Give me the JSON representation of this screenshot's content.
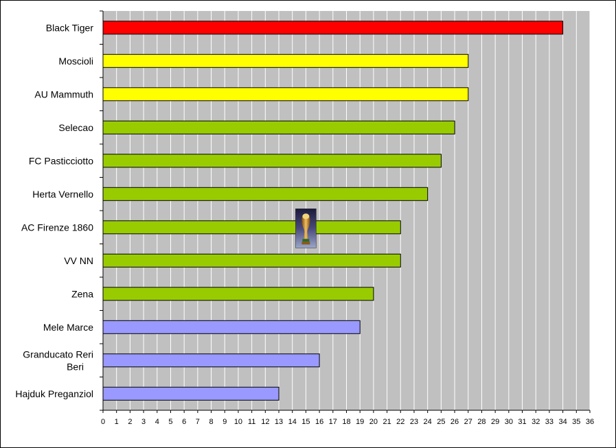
{
  "chart_data": {
    "type": "bar",
    "orientation": "horizontal",
    "title": "",
    "xlabel": "",
    "ylabel": "",
    "categories": [
      "Black Tiger",
      "Moscioli",
      "AU Mammuth",
      "Selecao",
      "FC Pasticciotto",
      "Herta Vernello",
      "AC Firenze 1860",
      "VV NN",
      "Zena",
      "Mele Marce",
      "Granducato Reri Beri",
      "Hajduk Preganziol"
    ],
    "values": [
      34,
      27,
      27,
      26,
      25,
      24,
      22,
      22,
      20,
      19,
      16,
      13
    ],
    "bar_colors": [
      "#ff0000",
      "#ffff00",
      "#ffff00",
      "#99cc00",
      "#99cc00",
      "#99cc00",
      "#99cc00",
      "#99cc00",
      "#99cc00",
      "#9999ff",
      "#9999ff",
      "#9999ff"
    ],
    "xlim": [
      0,
      36
    ],
    "x_ticks": [
      0,
      1,
      2,
      3,
      4,
      5,
      6,
      7,
      8,
      9,
      10,
      11,
      12,
      13,
      14,
      15,
      16,
      17,
      18,
      19,
      20,
      21,
      22,
      23,
      24,
      25,
      26,
      27,
      28,
      29,
      30,
      31,
      32,
      33,
      34,
      35,
      36
    ],
    "grid": true,
    "grid_axis": "x",
    "plot_background": "#c0c0c0",
    "legend": "none",
    "annotation": {
      "icon": "trophy-icon",
      "category": "AC Firenze 1860",
      "x_value": 15
    }
  }
}
